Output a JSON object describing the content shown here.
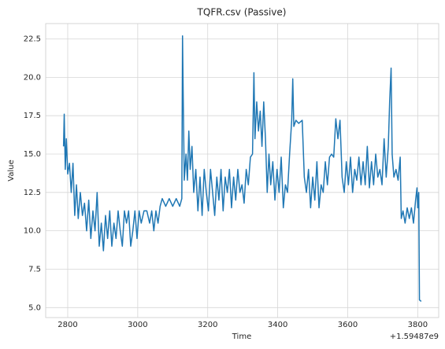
{
  "chart_data": {
    "type": "line",
    "title": "TQFR.csv (Passive)",
    "xlabel": "Time",
    "ylabel": "Value",
    "x_offset_label": "+1.59487e9",
    "color": "#1f77b4",
    "grid": true,
    "xlim": [
      2737,
      3860
    ],
    "ylim": [
      4.35,
      23.5
    ],
    "xticks": [
      2800,
      3000,
      3200,
      3400,
      3600,
      3800
    ],
    "yticks": [
      {
        "value": 5,
        "label": "5.0"
      },
      7.5,
      {
        "value": 10,
        "label": "10.0"
      },
      12.5,
      {
        "value": 15,
        "label": "15.0"
      },
      17.5,
      {
        "value": 20,
        "label": "20.0"
      },
      22.5
    ],
    "x": [
      2788,
      2790,
      2793,
      2796,
      2800,
      2805,
      2810,
      2815,
      2820,
      2825,
      2830,
      2836,
      2842,
      2848,
      2854,
      2860,
      2866,
      2872,
      2878,
      2884,
      2890,
      2896,
      2902,
      2908,
      2914,
      2920,
      2926,
      2932,
      2938,
      2944,
      2950,
      2956,
      2962,
      2968,
      2974,
      2980,
      2986,
      2992,
      2998,
      3004,
      3010,
      3018,
      3026,
      3034,
      3040,
      3046,
      3052,
      3058,
      3064,
      3070,
      3080,
      3090,
      3100,
      3110,
      3120,
      3126,
      3128,
      3130,
      3133,
      3138,
      3142,
      3146,
      3150,
      3155,
      3160,
      3166,
      3172,
      3178,
      3184,
      3190,
      3196,
      3202,
      3208,
      3214,
      3220,
      3226,
      3232,
      3238,
      3244,
      3250,
      3256,
      3262,
      3268,
      3274,
      3280,
      3286,
      3292,
      3298,
      3304,
      3310,
      3316,
      3322,
      3328,
      3332,
      3335,
      3340,
      3345,
      3350,
      3355,
      3360,
      3365,
      3370,
      3375,
      3380,
      3386,
      3392,
      3398,
      3404,
      3410,
      3416,
      3422,
      3428,
      3434,
      3440,
      3443,
      3446,
      3452,
      3460,
      3470,
      3476,
      3482,
      3488,
      3494,
      3500,
      3506,
      3512,
      3518,
      3524,
      3530,
      3536,
      3542,
      3548,
      3554,
      3560,
      3566,
      3572,
      3578,
      3584,
      3590,
      3596,
      3602,
      3608,
      3614,
      3620,
      3626,
      3632,
      3638,
      3644,
      3650,
      3656,
      3662,
      3668,
      3674,
      3680,
      3686,
      3692,
      3698,
      3704,
      3710,
      3716,
      3720,
      3724,
      3727,
      3732,
      3738,
      3744,
      3750,
      3753,
      3758,
      3764,
      3770,
      3776,
      3782,
      3788,
      3794,
      3798,
      3800,
      3803,
      3805,
      3810
    ],
    "values": [
      15.5,
      17.6,
      14.0,
      16.0,
      13.7,
      14.4,
      12.5,
      14.4,
      11.0,
      13.0,
      10.8,
      12.5,
      11.0,
      11.8,
      10.0,
      12.0,
      9.5,
      11.3,
      10.0,
      12.5,
      9.0,
      10.5,
      8.7,
      11.0,
      9.5,
      11.3,
      9.0,
      10.5,
      9.5,
      11.3,
      10.0,
      9.0,
      11.3,
      10.5,
      11.3,
      9.0,
      10.0,
      11.3,
      9.5,
      11.3,
      10.5,
      11.3,
      11.3,
      10.5,
      11.3,
      10.0,
      11.3,
      10.5,
      11.6,
      12.1,
      11.6,
      12.1,
      11.6,
      12.1,
      11.6,
      12.1,
      22.7,
      18.7,
      13.3,
      15.0,
      13.3,
      16.5,
      14.0,
      15.5,
      12.5,
      14.0,
      11.3,
      13.5,
      11.0,
      14.0,
      12.5,
      11.3,
      14.0,
      12.5,
      11.0,
      13.5,
      12.0,
      14.0,
      11.3,
      13.5,
      12.5,
      14.0,
      11.5,
      13.5,
      12.0,
      14.0,
      12.5,
      13.0,
      11.8,
      14.0,
      13.0,
      14.8,
      15.0,
      20.3,
      16.0,
      18.4,
      16.5,
      17.8,
      15.5,
      18.4,
      16.0,
      12.5,
      15.0,
      13.0,
      14.5,
      12.0,
      14.0,
      12.5,
      14.8,
      11.5,
      13.0,
      12.5,
      15.0,
      17.2,
      19.9,
      16.8,
      17.2,
      17.0,
      17.2,
      13.5,
      12.5,
      14.0,
      11.5,
      13.5,
      12.0,
      14.5,
      11.5,
      13.0,
      12.5,
      14.5,
      13.0,
      14.8,
      15.0,
      14.8,
      17.3,
      16.0,
      17.2,
      13.5,
      12.5,
      14.5,
      13.0,
      14.8,
      12.5,
      14.0,
      13.3,
      14.8,
      13.0,
      14.5,
      13.0,
      15.5,
      12.8,
      14.5,
      13.0,
      15.0,
      13.5,
      14.0,
      13.0,
      16.0,
      13.5,
      15.5,
      18.5,
      20.6,
      15.0,
      13.5,
      14.0,
      13.3,
      14.8,
      10.8,
      11.3,
      10.5,
      11.5,
      10.8,
      11.5,
      10.5,
      12.0,
      12.8,
      11.5,
      12.5,
      5.5,
      5.4
    ]
  }
}
